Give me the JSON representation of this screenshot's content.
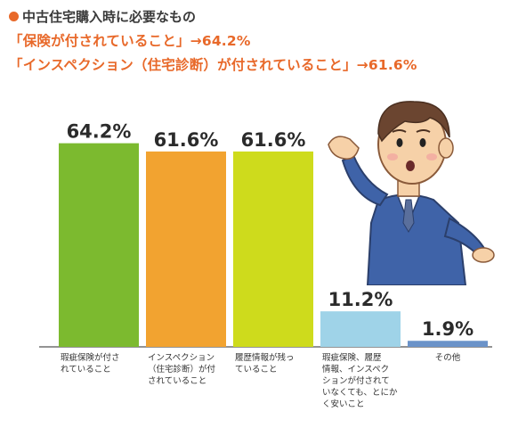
{
  "header": {
    "line1": "中古住宅購入時に必要なもの",
    "line2_text": "「保険が付されていること」→",
    "line2_value": "64.2%",
    "line3_text": "「インスペクション（住宅診断）が付されていること」→",
    "line3_value": "61.6%"
  },
  "chart_data": {
    "type": "bar",
    "categories": [
      "瑕疵保険が付さ\nれていること",
      "インスペクション\n（住宅診断）が付\nされていること",
      "履歴情報が残っ\nていること",
      "瑕疵保険、履歴\n情報、インスペク\nションが付されて\nいなくても、とにか\nく安いこと",
      "その他"
    ],
    "values": [
      64.2,
      61.6,
      61.6,
      11.2,
      1.9
    ],
    "value_labels": [
      "64.2%",
      "61.6%",
      "61.6%",
      "11.2%",
      "1.9%"
    ],
    "colors": [
      "#7cba2f",
      "#f2a330",
      "#cedb1c",
      "#9fd3e8",
      "#6b93c9"
    ],
    "ylim": [
      0,
      70
    ]
  }
}
